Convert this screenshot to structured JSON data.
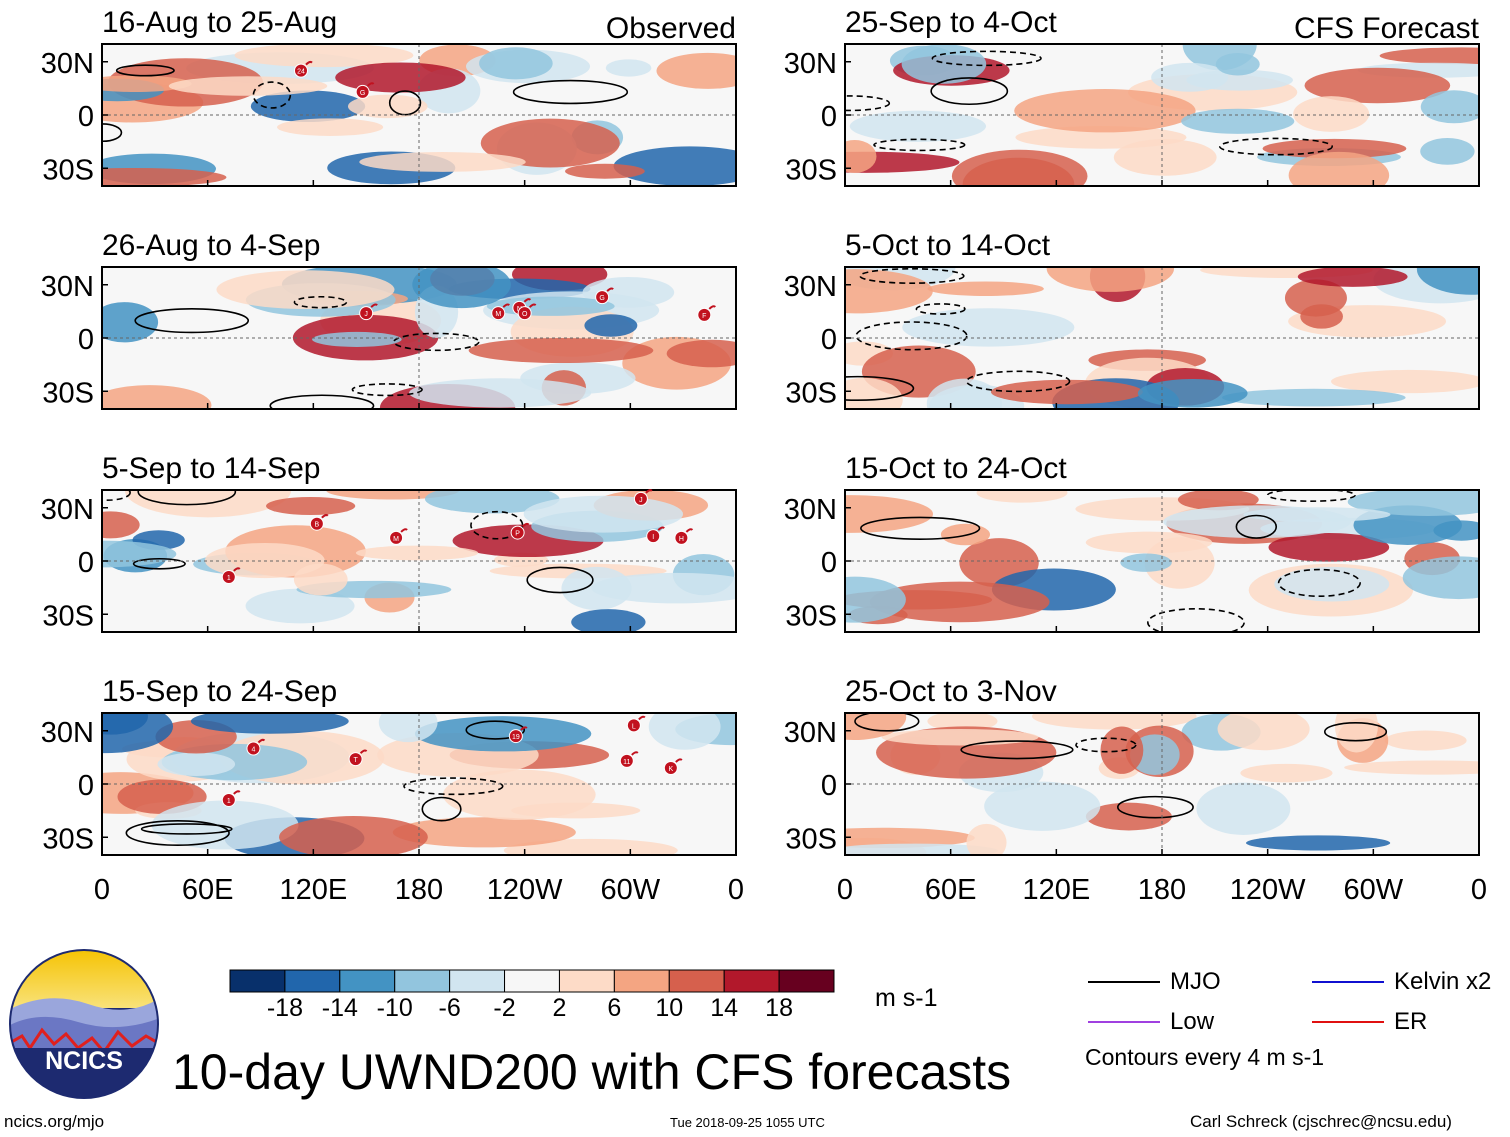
{
  "header": {
    "observed_label": "Observed",
    "forecast_label": "CFS Forecast"
  },
  "panels": {
    "observed": [
      {
        "period": "16-Aug to 25-Aug"
      },
      {
        "period": "26-Aug to 4-Sep"
      },
      {
        "period": "5-Sep to 14-Sep"
      },
      {
        "period": "15-Sep to 24-Sep"
      }
    ],
    "forecast": [
      {
        "period": "25-Sep to 4-Oct"
      },
      {
        "period": "5-Oct to 14-Oct"
      },
      {
        "period": "15-Oct to 24-Oct"
      },
      {
        "period": "25-Oct to 3-Nov"
      }
    ],
    "lat_labels": [
      "30N",
      "0",
      "30S"
    ],
    "lon_labels": [
      "0",
      "60E",
      "120E",
      "180",
      "120W",
      "60W",
      "0"
    ],
    "storm_markers": [
      {
        "panel": 0,
        "lon": 113,
        "lat": 25,
        "label": "24"
      },
      {
        "panel": 0,
        "lon": 148,
        "lat": 13,
        "label": "G"
      },
      {
        "panel": 1,
        "lon": 150,
        "lat": 14,
        "label": "J"
      },
      {
        "panel": 1,
        "lon": 225,
        "lat": 14,
        "label": "M"
      },
      {
        "panel": 1,
        "lon": 237,
        "lat": 17,
        "label": "N"
      },
      {
        "panel": 1,
        "lon": 240,
        "lat": 14,
        "label": "O"
      },
      {
        "panel": 1,
        "lon": 284,
        "lat": 23,
        "label": "G"
      },
      {
        "panel": 1,
        "lon": 342,
        "lat": 13,
        "label": "F"
      },
      {
        "panel": 2,
        "lon": 122,
        "lat": 21,
        "label": "B"
      },
      {
        "panel": 2,
        "lon": 167,
        "lat": 13,
        "label": "M"
      },
      {
        "panel": 2,
        "lon": 236,
        "lat": 16,
        "label": "P"
      },
      {
        "panel": 2,
        "lon": 306,
        "lat": 35,
        "label": "J"
      },
      {
        "panel": 2,
        "lon": 313,
        "lat": 14,
        "label": "I"
      },
      {
        "panel": 2,
        "lon": 329,
        "lat": 13,
        "label": "H"
      },
      {
        "panel": 2,
        "lon": 72,
        "lat": -9,
        "label": "1"
      },
      {
        "panel": 3,
        "lon": 86,
        "lat": 20,
        "label": "4"
      },
      {
        "panel": 3,
        "lon": 144,
        "lat": 14,
        "label": "T"
      },
      {
        "panel": 3,
        "lon": 235,
        "lat": 27,
        "label": "19"
      },
      {
        "panel": 3,
        "lon": 302,
        "lat": 33,
        "label": "L"
      },
      {
        "panel": 3,
        "lon": 298,
        "lat": 13,
        "label": "11"
      },
      {
        "panel": 3,
        "lon": 323,
        "lat": 9,
        "label": "K"
      },
      {
        "panel": 3,
        "lon": 72,
        "lat": -9,
        "label": "1"
      }
    ]
  },
  "colorbar": {
    "colors": [
      "#08306b",
      "#2166ac",
      "#4393c3",
      "#92c5de",
      "#d1e5f0",
      "#f7f7f7",
      "#fddbc7",
      "#f4a582",
      "#d6604d",
      "#b2182b",
      "#67001f"
    ],
    "labels": [
      "-18",
      "-14",
      "-10",
      "-6",
      "-2",
      "2",
      "6",
      "10",
      "14",
      "18"
    ],
    "units": "m s-1"
  },
  "legend": {
    "items": [
      {
        "label": "MJO",
        "color": "#000000"
      },
      {
        "label": "Kelvin x2",
        "color": "#1010d0"
      },
      {
        "label": "Low",
        "color": "#a040e0"
      },
      {
        "label": "ER",
        "color": "#e01010"
      }
    ],
    "contour_note": "Contours every 4 m s-1"
  },
  "logo": {
    "text": "NCICS"
  },
  "title": "10-day UWND200 with CFS forecasts",
  "footer": {
    "url": "ncics.org/mjo",
    "timestamp": "Tue 2018-09-25 1055 UTC",
    "credit": "Carl Schreck (cjschrec@ncsu.edu)"
  }
}
